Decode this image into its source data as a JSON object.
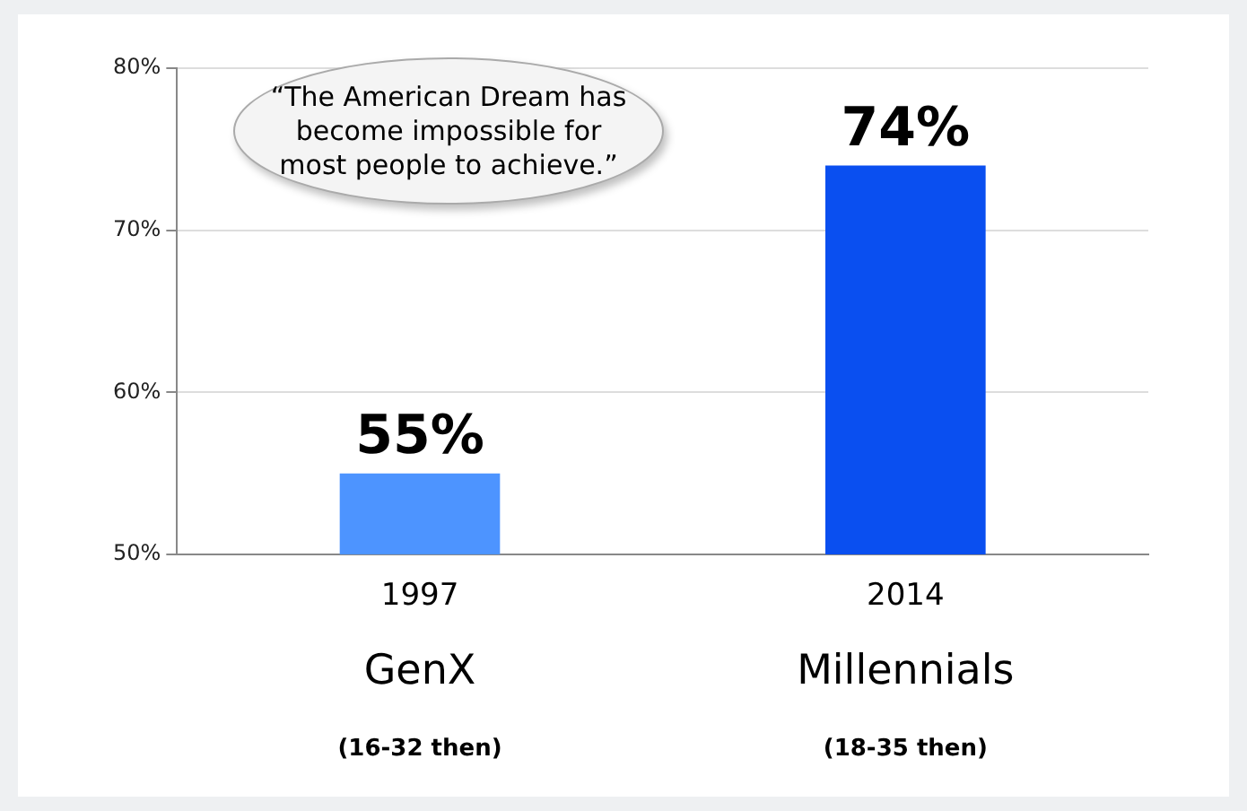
{
  "chart_data": {
    "type": "bar",
    "categories": [
      "1997\nGenX\n(16-32 then)",
      "2014\nMillennials\n(18-35 then)"
    ],
    "values": [
      55,
      74
    ],
    "colors": [
      "#4d94ff",
      "#0a4ff0"
    ],
    "value_labels": [
      "55%",
      "74%"
    ],
    "ylim": [
      50,
      80
    ],
    "yticks": [
      {
        "value": 50,
        "label": "50%"
      },
      {
        "value": 60,
        "label": "60%"
      },
      {
        "value": 70,
        "label": "70%"
      },
      {
        "value": 80,
        "label": "80%"
      }
    ],
    "grid": "y",
    "annotations": [
      "“The American Dream has become impossible for most people to achieve.”"
    ]
  }
}
